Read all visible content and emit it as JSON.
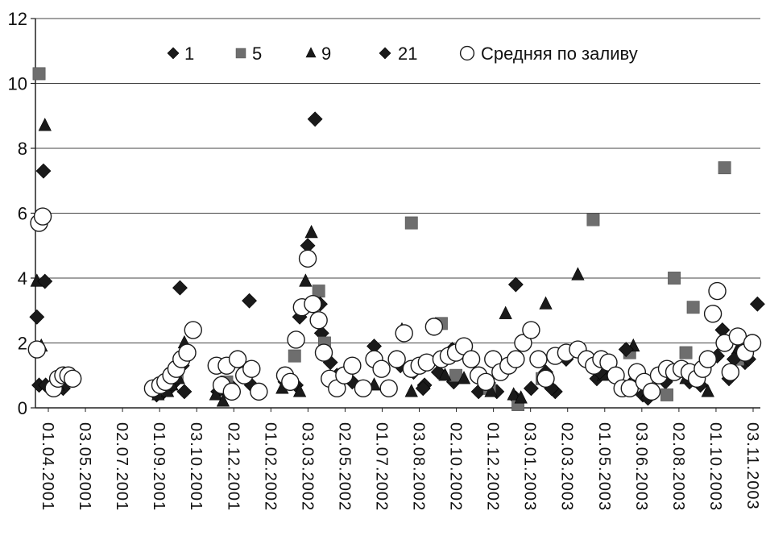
{
  "chart_data": {
    "type": "scatter",
    "title": "",
    "xlabel": "",
    "ylabel": "",
    "ylim": [
      0,
      12
    ],
    "yticks": [
      0,
      2,
      4,
      6,
      8,
      10,
      12
    ],
    "xlim": [
      "2001-03-28",
      "2003-12-16"
    ],
    "xtick_labels": [
      "01.04.2001",
      "03.05.2001",
      "02.07.2001",
      "01.09.2001",
      "03.10.2001",
      "02.12.2001",
      "01.02.2002",
      "03.03.2002",
      "02.05.2002",
      "01.07.2002",
      "03.08.2002",
      "02.10.2002",
      "01.12.2002",
      "03.01.2003",
      "02.03.2003",
      "01.05.2003",
      "03.06.2003",
      "02.08.2003",
      "01.10.2003",
      "03.11.2003"
    ],
    "grid": true,
    "legend_position": "top",
    "series": [
      {
        "name": "1",
        "marker": "diamond",
        "color": "#1a1a1a",
        "points": [
          [
            "2001-04-02",
            0.7
          ],
          [
            "2001-04-11",
            0.7
          ],
          [
            "2001-04-25",
            0.6
          ],
          [
            "2001-05-05",
            0.6
          ],
          [
            "2001-09-10",
            0.4
          ],
          [
            "2001-09-20",
            0.5
          ],
          [
            "2001-09-28",
            0.6
          ],
          [
            "2001-10-05",
            0.8
          ],
          [
            "2001-10-15",
            1.3
          ],
          [
            "2001-12-03",
            0.5
          ],
          [
            "2001-12-10",
            0.6
          ],
          [
            "2001-12-20",
            0.7
          ],
          [
            "2002-01-18",
            0.7
          ],
          [
            "2002-03-05",
            0.8
          ],
          [
            "2002-03-20",
            0.7
          ],
          [
            "2002-04-24",
            2.3
          ],
          [
            "2002-05-06",
            1.4
          ],
          [
            "2002-05-15",
            1.0
          ],
          [
            "2002-06-05",
            0.8
          ],
          [
            "2002-08-10",
            1.3
          ],
          [
            "2002-08-28",
            1.1
          ],
          [
            "2002-09-12",
            0.7
          ],
          [
            "2002-10-01",
            1.1
          ],
          [
            "2002-10-22",
            0.8
          ],
          [
            "2002-11-25",
            0.5
          ],
          [
            "2002-12-20",
            0.5
          ],
          [
            "2003-01-15",
            0.3
          ],
          [
            "2003-02-05",
            0.6
          ],
          [
            "2003-03-10",
            0.5
          ],
          [
            "2003-03-25",
            1.5
          ],
          [
            "2003-05-06",
            0.9
          ],
          [
            "2003-05-22",
            1.2
          ],
          [
            "2003-06-20",
            0.7
          ],
          [
            "2003-07-08",
            0.4
          ],
          [
            "2003-08-08",
            0.8
          ],
          [
            "2003-09-10",
            0.8
          ],
          [
            "2003-09-25",
            0.7
          ],
          [
            "2003-10-18",
            1.6
          ],
          [
            "2003-11-03",
            0.9
          ],
          [
            "2003-11-25",
            1.4
          ]
        ]
      },
      {
        "name": "5",
        "marker": "square",
        "color": "#6e6e6e",
        "points": [
          [
            "2001-04-02",
            10.3
          ],
          [
            "2001-09-15",
            0.6
          ],
          [
            "2001-10-08",
            1.0
          ],
          [
            "2001-12-15",
            0.8
          ],
          [
            "2002-03-18",
            1.6
          ],
          [
            "2002-04-20",
            3.6
          ],
          [
            "2002-04-28",
            2.0
          ],
          [
            "2002-08-25",
            5.7
          ],
          [
            "2002-10-05",
            2.6
          ],
          [
            "2002-10-25",
            1.0
          ],
          [
            "2002-12-10",
            0.6
          ],
          [
            "2003-01-18",
            0.1
          ],
          [
            "2003-02-20",
            0.9
          ],
          [
            "2003-05-01",
            5.8
          ],
          [
            "2003-06-20",
            1.7
          ],
          [
            "2003-08-10",
            0.4
          ],
          [
            "2003-08-20",
            4.0
          ],
          [
            "2003-09-05",
            1.7
          ],
          [
            "2003-09-15",
            3.1
          ],
          [
            "2003-10-28",
            7.4
          ],
          [
            "2003-11-15",
            1.5
          ]
        ]
      },
      {
        "name": "9",
        "marker": "triangle",
        "color": "#1a1a1a",
        "points": [
          [
            "2001-03-30",
            3.9
          ],
          [
            "2001-04-05",
            1.9
          ],
          [
            "2001-04-10",
            8.7
          ],
          [
            "2001-04-28",
            0.7
          ],
          [
            "2001-09-12",
            0.4
          ],
          [
            "2001-09-25",
            0.5
          ],
          [
            "2001-10-01",
            0.7
          ],
          [
            "2001-10-10",
            0.9
          ],
          [
            "2001-10-18",
            2.0
          ],
          [
            "2001-11-30",
            0.4
          ],
          [
            "2001-12-10",
            0.2
          ],
          [
            "2002-03-01",
            0.6
          ],
          [
            "2002-03-25",
            0.5
          ],
          [
            "2002-04-02",
            3.9
          ],
          [
            "2002-04-10",
            5.4
          ],
          [
            "2002-05-25",
            1.1
          ],
          [
            "2002-07-05",
            0.7
          ],
          [
            "2002-08-12",
            2.4
          ],
          [
            "2002-08-25",
            0.5
          ],
          [
            "2002-10-10",
            1.0
          ],
          [
            "2002-11-05",
            0.9
          ],
          [
            "2002-12-12",
            0.5
          ],
          [
            "2003-01-01",
            2.9
          ],
          [
            "2003-01-12",
            0.4
          ],
          [
            "2003-01-22",
            0.3
          ],
          [
            "2003-02-25",
            3.2
          ],
          [
            "2003-04-10",
            4.1
          ],
          [
            "2003-05-15",
            1.0
          ],
          [
            "2003-06-25",
            1.9
          ],
          [
            "2003-07-15",
            0.5
          ],
          [
            "2003-09-05",
            0.9
          ],
          [
            "2003-10-05",
            0.5
          ],
          [
            "2003-10-30",
            2.0
          ],
          [
            "2003-11-15",
            1.8
          ]
        ]
      },
      {
        "name": "21",
        "marker": "diamond",
        "color": "#1a1a1a",
        "points": [
          [
            "2001-03-30",
            2.8
          ],
          [
            "2001-04-08",
            7.3
          ],
          [
            "2001-04-10",
            3.9
          ],
          [
            "2001-10-12",
            3.7
          ],
          [
            "2001-10-18",
            0.5
          ],
          [
            "2002-01-15",
            3.3
          ],
          [
            "2002-03-25",
            2.8
          ],
          [
            "2002-04-05",
            5.0
          ],
          [
            "2002-04-15",
            8.9
          ],
          [
            "2002-04-22",
            3.2
          ],
          [
            "2002-07-05",
            1.9
          ],
          [
            "2002-09-10",
            0.6
          ],
          [
            "2002-10-20",
            1.8
          ],
          [
            "2003-01-15",
            3.8
          ],
          [
            "2003-02-25",
            1.1
          ],
          [
            "2003-03-05",
            0.6
          ],
          [
            "2003-05-10",
            1.1
          ],
          [
            "2003-06-15",
            1.8
          ],
          [
            "2003-07-15",
            0.3
          ],
          [
            "2003-08-15",
            1.1
          ],
          [
            "2003-10-25",
            2.4
          ],
          [
            "2003-11-10",
            1.5
          ],
          [
            "2003-11-30",
            1.5
          ],
          [
            "2003-12-12",
            3.2
          ]
        ]
      },
      {
        "name": "Средняя по заливу",
        "marker": "circle",
        "color": "#1a1a1a",
        "points": [
          [
            "2001-03-30",
            1.8
          ],
          [
            "2001-04-02",
            5.7
          ],
          [
            "2001-04-07",
            5.9
          ],
          [
            "2001-04-22",
            0.6
          ],
          [
            "2001-04-28",
            0.9
          ],
          [
            "2001-05-05",
            1.0
          ],
          [
            "2001-05-12",
            1.0
          ],
          [
            "2001-05-18",
            0.9
          ],
          [
            "2001-09-05",
            0.6
          ],
          [
            "2001-09-15",
            0.7
          ],
          [
            "2001-09-22",
            0.8
          ],
          [
            "2001-09-30",
            1.0
          ],
          [
            "2001-10-07",
            1.2
          ],
          [
            "2001-10-14",
            1.5
          ],
          [
            "2001-10-22",
            1.7
          ],
          [
            "2001-10-30",
            2.4
          ],
          [
            "2001-12-01",
            1.3
          ],
          [
            "2001-12-08",
            0.7
          ],
          [
            "2001-12-15",
            1.3
          ],
          [
            "2001-12-22",
            0.5
          ],
          [
            "2001-12-30",
            1.5
          ],
          [
            "2002-01-08",
            1.0
          ],
          [
            "2002-01-18",
            1.2
          ],
          [
            "2002-01-28",
            0.5
          ],
          [
            "2002-03-05",
            1.0
          ],
          [
            "2002-03-12",
            0.8
          ],
          [
            "2002-03-20",
            2.1
          ],
          [
            "2002-03-28",
            3.1
          ],
          [
            "2002-04-05",
            4.6
          ],
          [
            "2002-04-12",
            3.2
          ],
          [
            "2002-04-20",
            2.7
          ],
          [
            "2002-04-27",
            1.7
          ],
          [
            "2002-05-05",
            0.9
          ],
          [
            "2002-05-15",
            0.6
          ],
          [
            "2002-05-25",
            1.0
          ],
          [
            "2002-06-05",
            1.3
          ],
          [
            "2002-06-20",
            0.6
          ],
          [
            "2002-07-05",
            1.5
          ],
          [
            "2002-07-15",
            1.2
          ],
          [
            "2002-07-25",
            0.6
          ],
          [
            "2002-08-05",
            1.5
          ],
          [
            "2002-08-15",
            2.3
          ],
          [
            "2002-08-25",
            1.2
          ],
          [
            "2002-09-05",
            1.3
          ],
          [
            "2002-09-15",
            1.4
          ],
          [
            "2002-09-25",
            2.5
          ],
          [
            "2002-10-05",
            1.5
          ],
          [
            "2002-10-15",
            1.6
          ],
          [
            "2002-10-25",
            1.7
          ],
          [
            "2002-11-05",
            1.9
          ],
          [
            "2002-11-15",
            1.5
          ],
          [
            "2002-11-25",
            1.0
          ],
          [
            "2002-12-05",
            0.8
          ],
          [
            "2002-12-15",
            1.5
          ],
          [
            "2002-12-25",
            1.1
          ],
          [
            "2003-01-05",
            1.3
          ],
          [
            "2003-01-15",
            1.5
          ],
          [
            "2003-01-25",
            2.0
          ],
          [
            "2003-02-05",
            2.4
          ],
          [
            "2003-02-15",
            1.5
          ],
          [
            "2003-02-25",
            0.9
          ],
          [
            "2003-03-10",
            1.6
          ],
          [
            "2003-03-25",
            1.7
          ],
          [
            "2003-04-10",
            1.8
          ],
          [
            "2003-04-22",
            1.5
          ],
          [
            "2003-05-02",
            1.3
          ],
          [
            "2003-05-12",
            1.5
          ],
          [
            "2003-05-22",
            1.4
          ],
          [
            "2003-06-01",
            1.0
          ],
          [
            "2003-06-10",
            0.6
          ],
          [
            "2003-06-20",
            0.6
          ],
          [
            "2003-06-30",
            1.1
          ],
          [
            "2003-07-10",
            0.8
          ],
          [
            "2003-07-20",
            0.5
          ],
          [
            "2003-07-30",
            1.0
          ],
          [
            "2003-08-10",
            1.2
          ],
          [
            "2003-08-20",
            1.1
          ],
          [
            "2003-08-30",
            1.2
          ],
          [
            "2003-09-10",
            1.1
          ],
          [
            "2003-09-20",
            0.9
          ],
          [
            "2003-09-28",
            1.2
          ],
          [
            "2003-10-05",
            1.5
          ],
          [
            "2003-10-12",
            2.9
          ],
          [
            "2003-10-18",
            3.6
          ],
          [
            "2003-10-28",
            2.0
          ],
          [
            "2003-11-05",
            1.1
          ],
          [
            "2003-11-15",
            2.2
          ],
          [
            "2003-11-25",
            1.7
          ],
          [
            "2003-12-05",
            2.0
          ]
        ]
      }
    ]
  }
}
